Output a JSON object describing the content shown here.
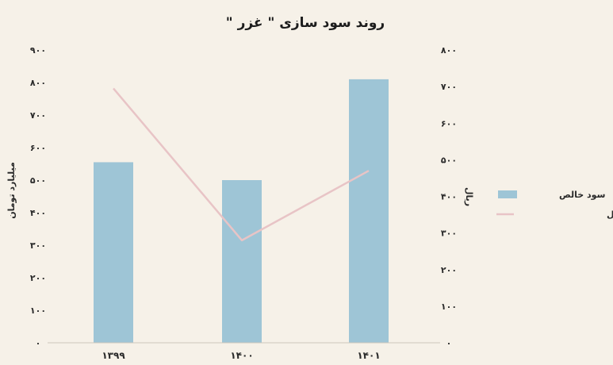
{
  "chart_data": {
    "type": "bar",
    "title": "روند سود سازی \" غزر \"",
    "categories": [
      "۱۳۹۹",
      "۱۴۰۰",
      "۱۴۰۱"
    ],
    "y_left": {
      "label": "میلیارد تومان",
      "ylim": [
        0,
        900
      ],
      "ticks": [
        0,
        100,
        200,
        300,
        400,
        500,
        600,
        700,
        800,
        900
      ],
      "tick_labels": [
        "۰",
        "۱۰۰",
        "۲۰۰",
        "۳۰۰",
        "۴۰۰",
        "۵۰۰",
        "۶۰۰",
        "۷۰۰",
        "۸۰۰",
        "۹۰۰"
      ]
    },
    "y_right": {
      "label": "ریال",
      "ylim": [
        0,
        800
      ],
      "ticks": [
        0,
        100,
        200,
        300,
        400,
        500,
        600,
        700,
        800
      ],
      "tick_labels": [
        "۰",
        "۱۰۰",
        "۲۰۰",
        "۳۰۰",
        "۴۰۰",
        "۵۰۰",
        "۶۰۰",
        "۷۰۰",
        "۸۰۰"
      ]
    },
    "series": [
      {
        "name": "سود خالص",
        "kind": "bar",
        "axis": "left",
        "color": "#9ec5d6",
        "values": [
          555,
          500,
          810
        ]
      },
      {
        "name": "سود خالص هر سهم به ریال",
        "kind": "line",
        "axis": "right",
        "color": "#e8c4c6",
        "values": [
          695,
          280,
          470
        ]
      }
    ],
    "legend_position": "right",
    "grid": false
  }
}
